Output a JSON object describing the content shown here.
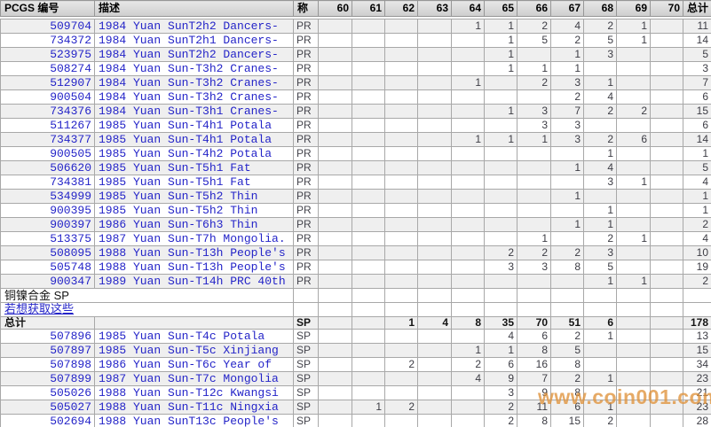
{
  "colors": {
    "link_blue": "#2424c8",
    "row_shade": "#efefef",
    "grid_line": "#a8a8a8",
    "header_bg": "#d6d6d6",
    "watermark_orange": "#e0933c"
  },
  "watermark": "www.coin001.com",
  "section": {
    "title": "铜镍合金  SP",
    "link": "若想获取这些"
  },
  "header": {
    "pcgs": "PCGS 编号",
    "desc": "描述",
    "svc": "称",
    "total": "总计"
  },
  "columns": [
    "60",
    "61",
    "62",
    "63",
    "64",
    "65",
    "66",
    "67",
    "68",
    "69",
    "70"
  ],
  "pr_rows": [
    {
      "pcgs": "509704",
      "desc": "1984 Yuan SunT2h2 Dancers-",
      "svc": "PR",
      "grades": {
        "64": 1,
        "65": 1,
        "66": 2,
        "67": 4,
        "68": 2,
        "69": 1
      },
      "total": 11
    },
    {
      "pcgs": "734372",
      "desc": "1984 Yuan SunT2h1 Dancers-",
      "svc": "PR",
      "grades": {
        "65": 1,
        "66": 5,
        "67": 2,
        "68": 5,
        "69": 1
      },
      "total": 14
    },
    {
      "pcgs": "523975",
      "desc": "1984 Yuan SunT2h2 Dancers-",
      "svc": "PR",
      "grades": {
        "65": 1,
        "67": 1,
        "68": 3
      },
      "total": 5
    },
    {
      "pcgs": "508274",
      "desc": "1984 Yuan Sun-T3h2 Cranes-",
      "svc": "PR",
      "grades": {
        "65": 1,
        "66": 1,
        "67": 1
      },
      "total": 3
    },
    {
      "pcgs": "512907",
      "desc": "1984 Yuan Sun-T3h2 Cranes-",
      "svc": "PR",
      "grades": {
        "64": 1,
        "66": 2,
        "67": 3,
        "68": 1
      },
      "total": 7
    },
    {
      "pcgs": "900504",
      "desc": "1984 Yuan Sun-T3h2 Cranes-",
      "svc": "PR",
      "grades": {
        "67": 2,
        "68": 4
      },
      "total": 6
    },
    {
      "pcgs": "734376",
      "desc": "1984 Yuan Sun-T3h1 Cranes-",
      "svc": "PR",
      "grades": {
        "65": 1,
        "66": 3,
        "67": 7,
        "68": 2,
        "69": 2
      },
      "total": 15
    },
    {
      "pcgs": "511267",
      "desc": "1985 Yuan Sun-T4h1 Potala",
      "svc": "PR",
      "grades": {
        "66": 3,
        "67": 3
      },
      "total": 6
    },
    {
      "pcgs": "734377",
      "desc": "1985 Yuan Sun-T4h1 Potala",
      "svc": "PR",
      "grades": {
        "64": 1,
        "65": 1,
        "66": 1,
        "67": 3,
        "68": 2,
        "69": 6
      },
      "total": 14
    },
    {
      "pcgs": "900505",
      "desc": "1985 Yuan Sun-T4h2 Potala",
      "svc": "PR",
      "grades": {
        "68": 1
      },
      "total": 1
    },
    {
      "pcgs": "506620",
      "desc": "1985 Yuan Sun-T5h1 Fat",
      "svc": "PR",
      "grades": {
        "67": 1,
        "68": 4
      },
      "total": 5
    },
    {
      "pcgs": "734381",
      "desc": "1985 Yuan Sun-T5h1 Fat",
      "svc": "PR",
      "grades": {
        "68": 3,
        "69": 1
      },
      "total": 4
    },
    {
      "pcgs": "534999",
      "desc": "1985 Yuan Sun-T5h2 Thin",
      "svc": "PR",
      "grades": {
        "67": 1
      },
      "total": 1
    },
    {
      "pcgs": "900395",
      "desc": "1985 Yuan Sun-T5h2 Thin",
      "svc": "PR",
      "grades": {
        "68": 1
      },
      "total": 1
    },
    {
      "pcgs": "900397",
      "desc": "1986 Yuan Sun-T6h3 Thin",
      "svc": "PR",
      "grades": {
        "67": 1,
        "68": 1
      },
      "total": 2
    },
    {
      "pcgs": "513375",
      "desc": "1987 Yuan Sun-T7h Mongolia.",
      "svc": "PR",
      "grades": {
        "66": 1,
        "68": 2,
        "69": 1
      },
      "total": 4
    },
    {
      "pcgs": "508095",
      "desc": "1988 Yuan Sun-T13h People's",
      "svc": "PR",
      "grades": {
        "65": 2,
        "66": 2,
        "67": 2,
        "68": 3
      },
      "total": 10
    },
    {
      "pcgs": "505748",
      "desc": "1988 Yuan Sun-T13h People's",
      "svc": "PR",
      "grades": {
        "65": 3,
        "66": 3,
        "67": 8,
        "68": 5
      },
      "total": 19
    },
    {
      "pcgs": "900347",
      "desc": "1989 Yuan Sun-T14h PRC 40th",
      "svc": "PR",
      "grades": {
        "68": 1,
        "69": 1
      },
      "total": 2
    }
  ],
  "sp_total": {
    "label": "总计",
    "svc": "SP",
    "grades": {
      "62": 1,
      "63": 4,
      "64": 8,
      "65": 35,
      "66": 70,
      "67": 51,
      "68": 6
    },
    "total": 178
  },
  "sp_rows": [
    {
      "pcgs": "507896",
      "desc": "1985 Yuan Sun-T4c Potala",
      "svc": "SP",
      "grades": {
        "65": 4,
        "66": 6,
        "67": 2,
        "68": 1
      },
      "total": 13
    },
    {
      "pcgs": "507897",
      "desc": "1985 Yuan Sun-T5c Xinjiang",
      "svc": "SP",
      "grades": {
        "64": 1,
        "65": 1,
        "66": 8,
        "67": 5
      },
      "total": 15
    },
    {
      "pcgs": "507898",
      "desc": "1986 Yuan Sun-T6c Year of",
      "svc": "SP",
      "grades": {
        "62": 2,
        "64": 2,
        "65": 6,
        "66": 16,
        "67": 8
      },
      "total": 34
    },
    {
      "pcgs": "507899",
      "desc": "1987 Yuan Sun-T7c Mongolia",
      "svc": "SP",
      "grades": {
        "64": 4,
        "65": 9,
        "66": 7,
        "67": 2,
        "68": 1
      },
      "total": 23
    },
    {
      "pcgs": "505026",
      "desc": "1988 Yuan Sun-T12c Kwangsi",
      "svc": "SP",
      "grades": {
        "65": 3,
        "66": 9,
        "67": 8
      },
      "total": 21
    },
    {
      "pcgs": "505027",
      "desc": "1988 Yuan Sun-T11c Ningxia",
      "svc": "SP",
      "grades": {
        "61": 1,
        "62": 2,
        "65": 2,
        "66": 11,
        "67": 6,
        "68": 1
      },
      "total": 23
    },
    {
      "pcgs": "502694",
      "desc": "1988 Yuan SunT13c People's",
      "svc": "SP",
      "grades": {
        "65": 2,
        "66": 8,
        "67": 15,
        "68": 2
      },
      "total": 28
    }
  ]
}
